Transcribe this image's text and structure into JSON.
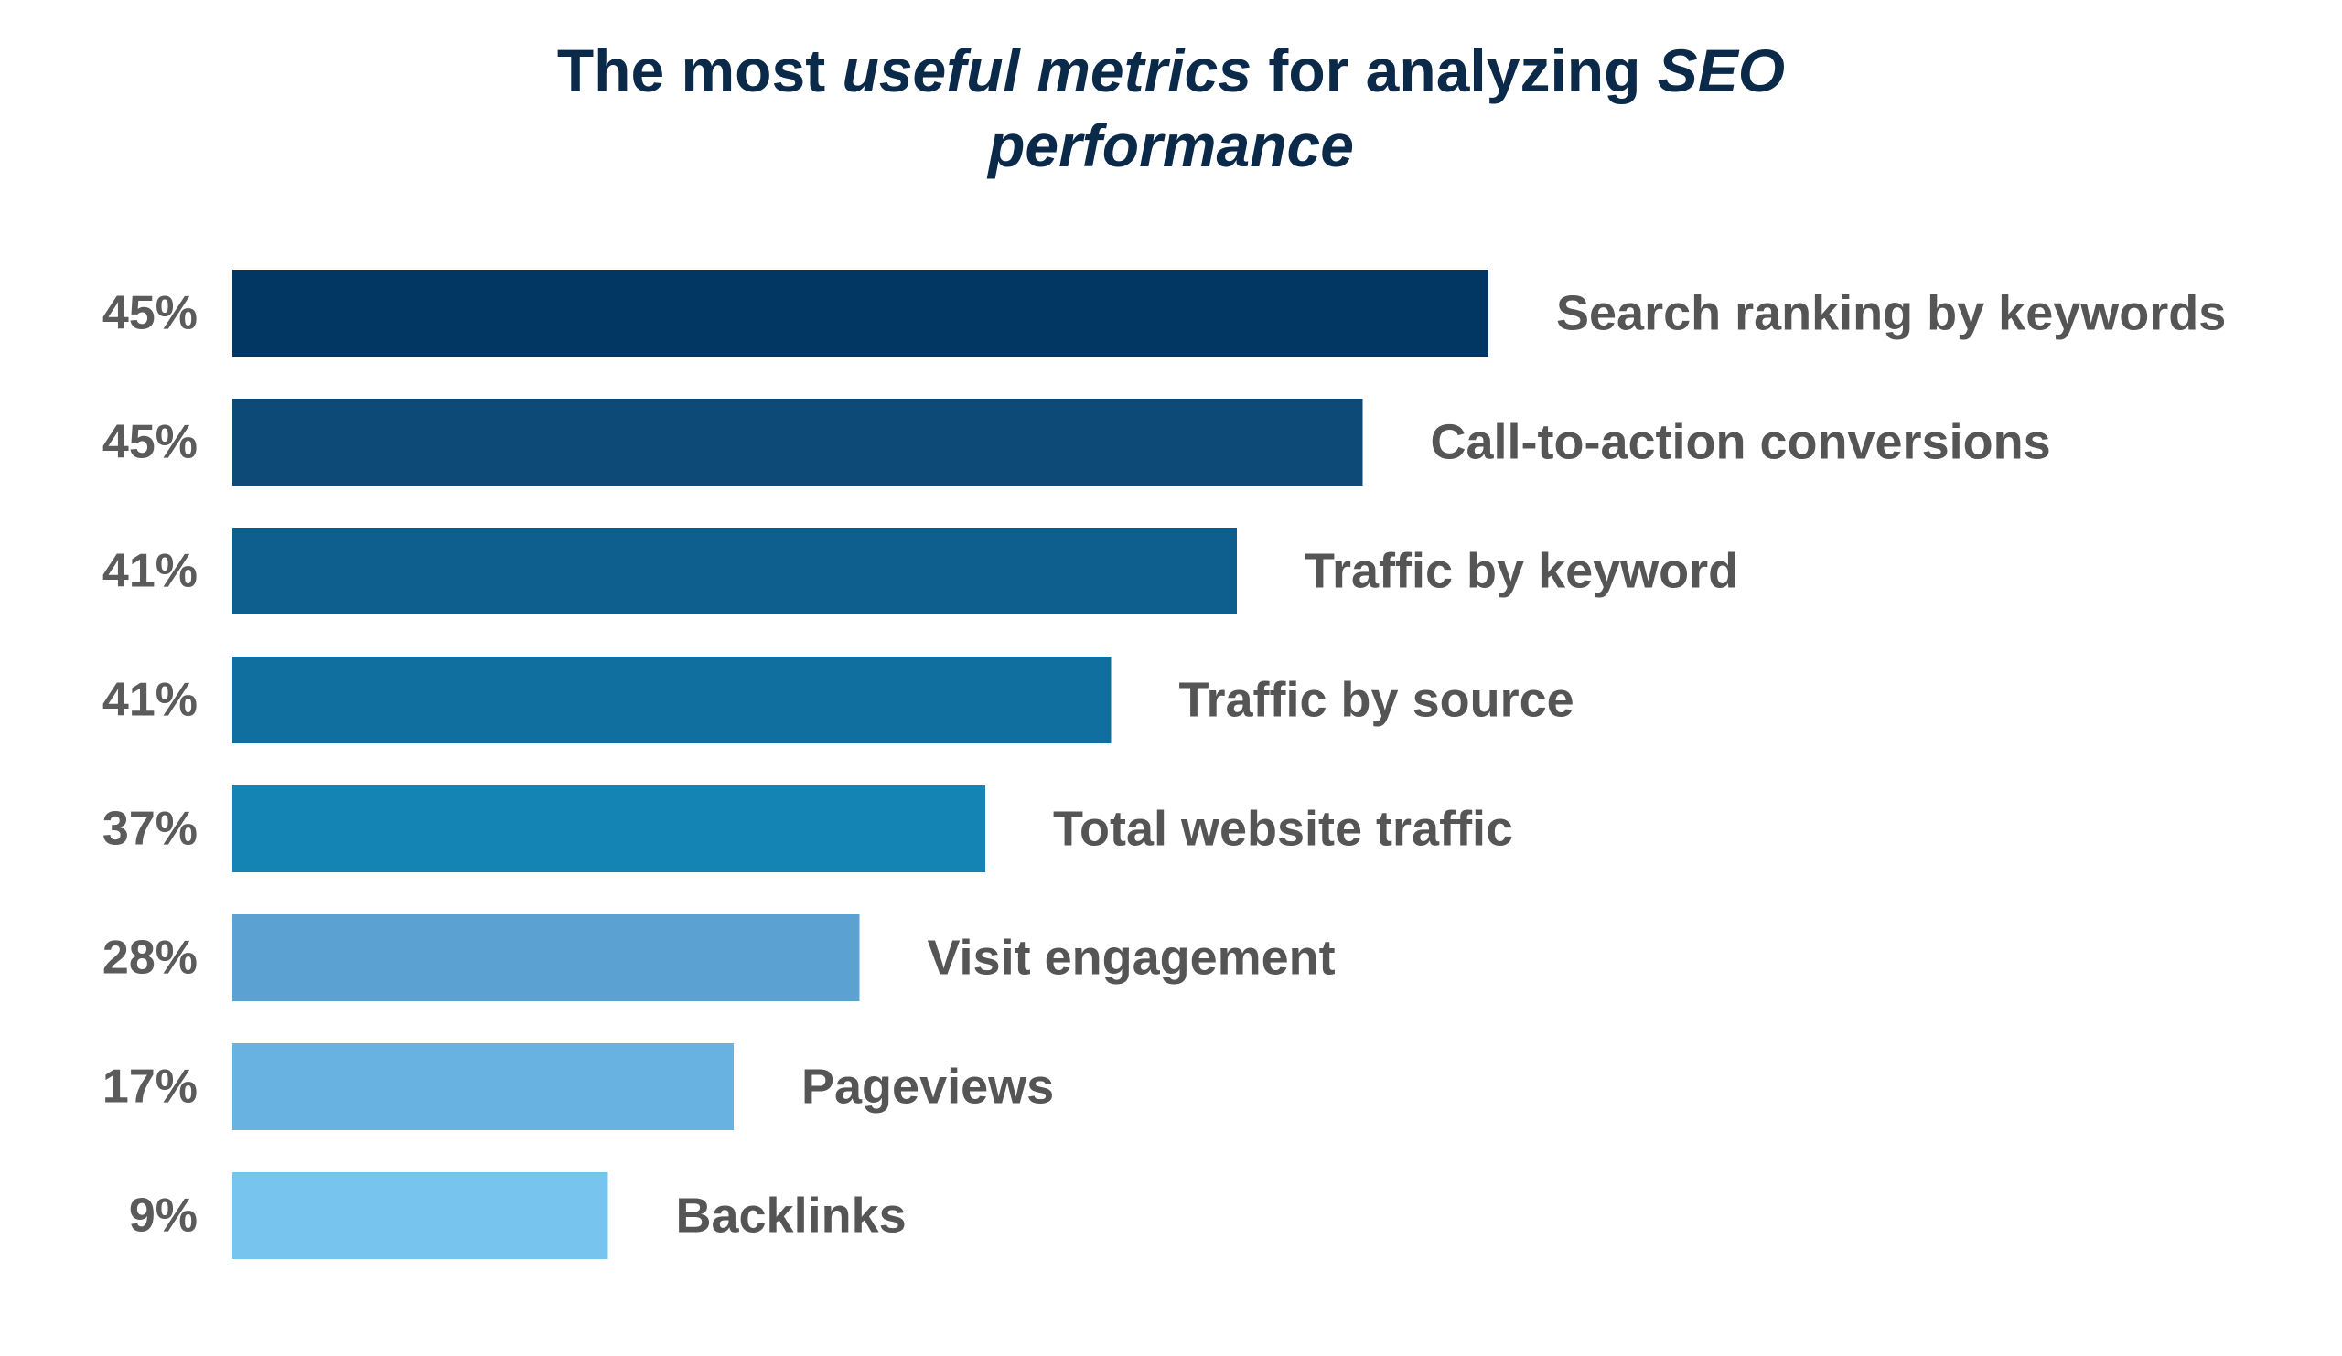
{
  "title": {
    "p1": "The most ",
    "p2": "useful metrics",
    "p3": " for analyzing ",
    "p4": "SEO",
    "p5": "performance"
  },
  "chart_data": {
    "type": "bar",
    "orientation": "horizontal",
    "title": "The most useful metrics for analyzing SEO performance",
    "categories": [
      "Search ranking by keywords",
      "Call-to-action conversions",
      "Traffic by keyword",
      "Traffic by source",
      "Total website traffic",
      "Visit engagement",
      "Pageviews",
      "Backlinks"
    ],
    "values": [
      45,
      45,
      41,
      41,
      37,
      28,
      17,
      9
    ],
    "value_labels": [
      "45%",
      "45%",
      "41%",
      "41%",
      "37%",
      "28%",
      "17%",
      "9%"
    ],
    "colors": [
      "#023764",
      "#0d4a77",
      "#0e5e8e",
      "#106f9f",
      "#1384b3",
      "#5ba1d2",
      "#67b2e0",
      "#77c5ef"
    ],
    "grid": false,
    "legend": "none"
  }
}
